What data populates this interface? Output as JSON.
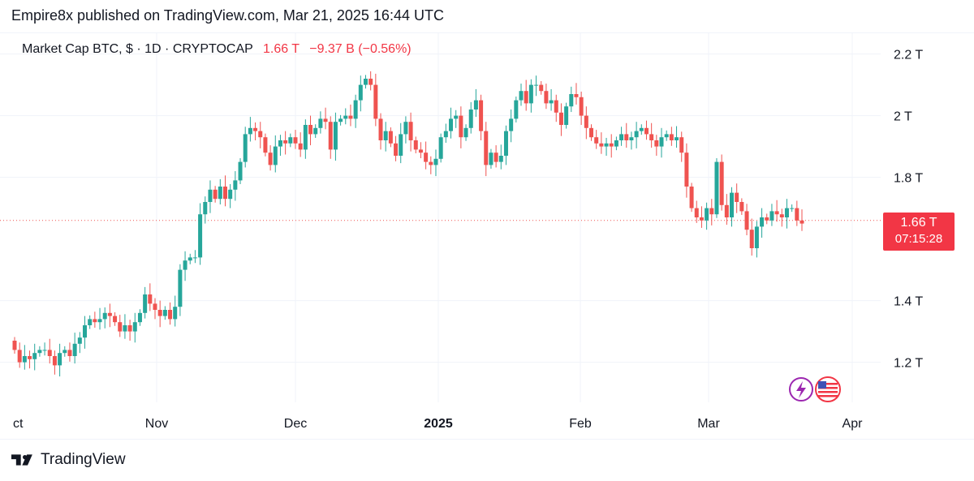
{
  "header": {
    "publisher": "Empire8x published on TradingView.com, Mar 21, 2025 16:44 UTC"
  },
  "legend": {
    "symbol": "Market Cap BTC, $ · 1D · CRYPTOCAP",
    "last": "1.66 T",
    "change": "−9.37 B (−0.56%)"
  },
  "price_tag": {
    "price": "1.66 T",
    "countdown": "07:15:28"
  },
  "footer": {
    "brand": "TradingView"
  },
  "colors": {
    "up": "#26a69a",
    "down": "#ef5350",
    "tag": "#f23645",
    "grid": "#f0f3fa"
  },
  "icons": [
    "lightning-icon",
    "us-flag-icon"
  ],
  "chart_data": {
    "type": "candlestick",
    "title": "Market Cap BTC, $ · 1D · CRYPTOCAP",
    "ylabel": "",
    "xlabel": "",
    "y_ticks": [
      "2.2 T",
      "2 T",
      "1.8 T",
      "1.4 T",
      "1.2 T"
    ],
    "y_tick_values": [
      2.2,
      2.0,
      1.8,
      1.4,
      1.2
    ],
    "x_ticks": [
      "ct",
      "Nov",
      "Dec",
      "2025",
      "Feb",
      "Mar",
      "Apr"
    ],
    "ylim": [
      1.07,
      2.27
    ],
    "last_price": 1.66,
    "close": [
      1.24,
      1.2,
      1.22,
      1.21,
      1.23,
      1.24,
      1.24,
      1.22,
      1.19,
      1.23,
      1.24,
      1.22,
      1.26,
      1.28,
      1.32,
      1.34,
      1.33,
      1.34,
      1.36,
      1.35,
      1.33,
      1.3,
      1.32,
      1.3,
      1.33,
      1.36,
      1.42,
      1.39,
      1.37,
      1.35,
      1.37,
      1.34,
      1.38,
      1.5,
      1.53,
      1.54,
      1.54,
      1.68,
      1.72,
      1.76,
      1.73,
      1.77,
      1.73,
      1.76,
      1.79,
      1.85,
      1.94,
      1.96,
      1.95,
      1.93,
      1.88,
      1.84,
      1.9,
      1.92,
      1.91,
      1.93,
      1.91,
      1.89,
      1.97,
      1.94,
      1.96,
      1.99,
      1.98,
      1.89,
      1.98,
      1.99,
      2.0,
      1.99,
      2.05,
      2.1,
      2.12,
      2.1,
      1.99,
      1.92,
      1.95,
      1.91,
      1.87,
      1.94,
      1.98,
      1.92,
      1.89,
      1.88,
      1.85,
      1.84,
      1.86,
      1.93,
      1.95,
      1.99,
      2.0,
      1.93,
      1.96,
      2.02,
      2.05,
      1.95,
      1.84,
      1.88,
      1.85,
      1.87,
      1.95,
      1.99,
      2.05,
      2.08,
      2.04,
      2.1,
      2.1,
      2.08,
      2.04,
      2.05,
      2.01,
      1.97,
      2.03,
      2.07,
      2.06,
      2.0,
      1.96,
      1.93,
      1.91,
      1.9,
      1.91,
      1.9,
      1.92,
      1.94,
      1.92,
      1.93,
      1.95,
      1.96,
      1.94,
      1.92,
      1.9,
      1.93,
      1.94,
      1.92,
      1.93,
      1.88,
      1.77,
      1.7,
      1.67,
      1.66,
      1.7,
      1.68,
      1.85,
      1.71,
      1.67,
      1.75,
      1.72,
      1.69,
      1.63,
      1.57,
      1.64,
      1.67,
      1.66,
      1.69,
      1.68,
      1.67,
      1.7,
      1.7,
      1.66,
      1.65
    ]
  }
}
